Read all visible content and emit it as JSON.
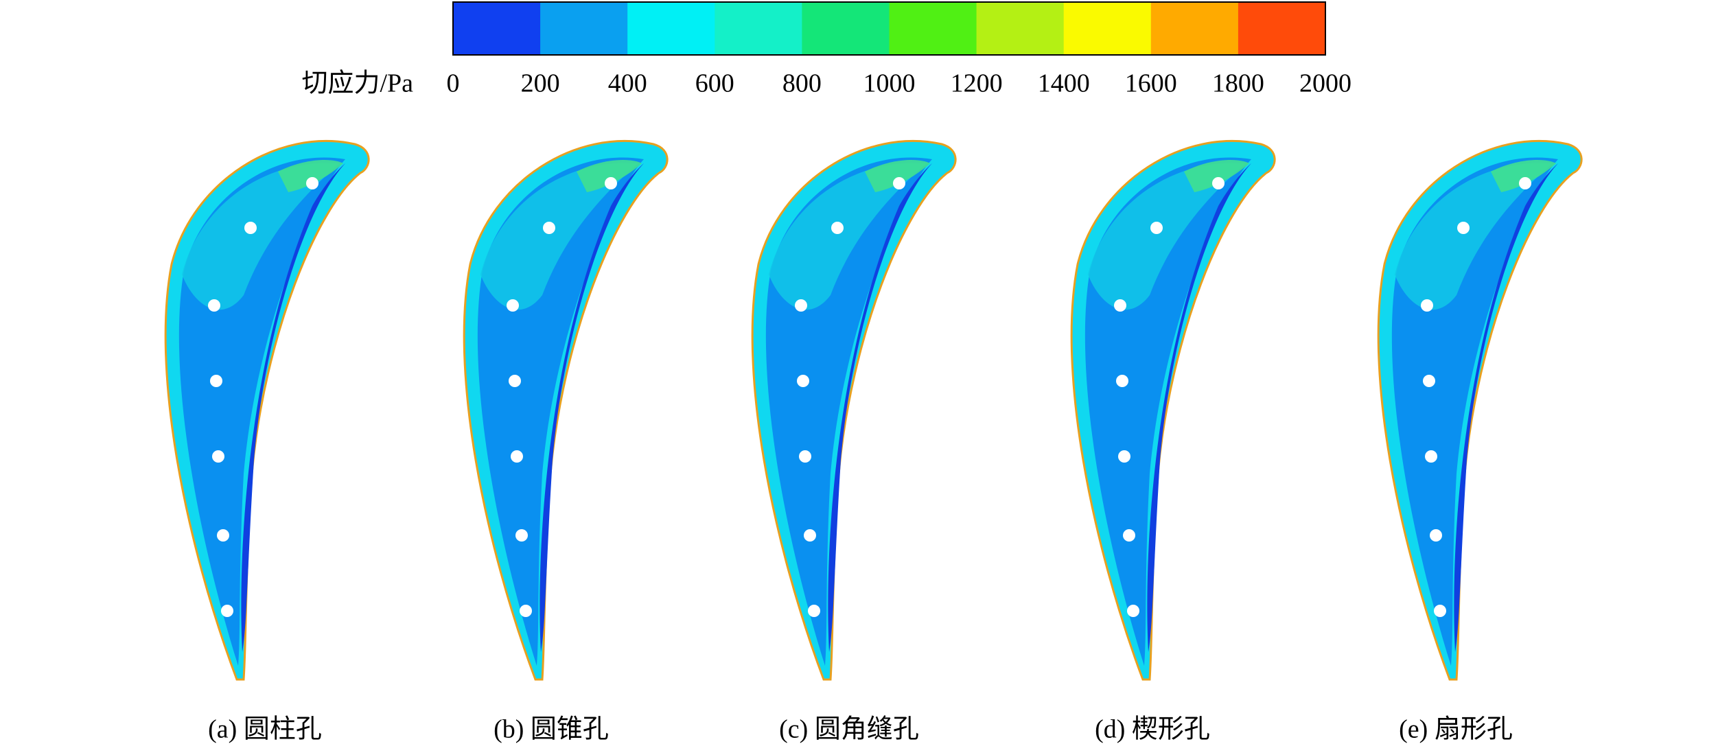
{
  "colorbar": {
    "label": "切应力/Pa",
    "ticks": [
      0,
      200,
      400,
      600,
      800,
      1000,
      1200,
      1400,
      1600,
      1800,
      2000
    ],
    "colors": [
      "#1040f0",
      "#0aa0f0",
      "#00f0f5",
      "#14f0c8",
      "#14e678",
      "#50f014",
      "#b4f014",
      "#fafa00",
      "#ffaa00",
      "#ff4b0a"
    ]
  },
  "panels": [
    {
      "caption": "(a) 圆柱孔"
    },
    {
      "caption": "(b) 圆锥孔"
    },
    {
      "caption": "(c) 圆角缝孔"
    },
    {
      "caption": "(d) 楔形孔"
    },
    {
      "caption": "(e) 扇形孔"
    }
  ]
}
